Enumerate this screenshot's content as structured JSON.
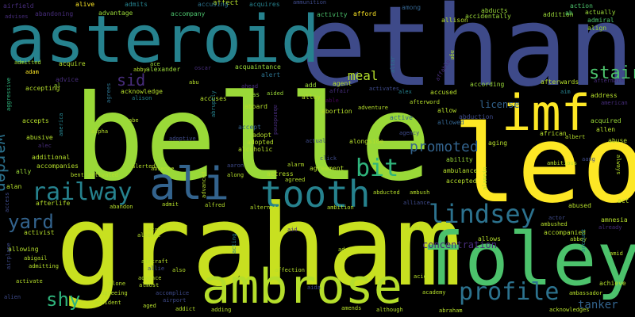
{
  "palette": {
    "yellow": "#c8e020",
    "lime": "#9ad938",
    "green": "#4cc26c",
    "teal_green": "#2fb47c",
    "teal": "#26828e",
    "teal_blue": "#2c728e",
    "blue": "#33638d",
    "indigo": "#3e4a89",
    "violet": "#472d7b",
    "purple": "#440154",
    "light_yellow": "#fde725",
    "pale": "#b5de2b"
  },
  "words": [
    {
      "text": "ethan",
      "color": "indigo",
      "weight": 140
    },
    {
      "text": "asteroid",
      "color": "teal",
      "weight": 82
    },
    {
      "text": "belle",
      "color": "lime",
      "weight": 150
    },
    {
      "text": "leo",
      "color": "light_yellow",
      "weight": 135
    },
    {
      "text": "graham",
      "color": "yellow",
      "weight": 142
    },
    {
      "text": "imf",
      "color": "light_yellow",
      "weight": 62
    },
    {
      "text": "foley",
      "color": "green",
      "weight": 92
    },
    {
      "text": "ali",
      "color": "blue",
      "weight": 56
    },
    {
      "text": "tooth",
      "color": "teal",
      "weight": 46
    },
    {
      "text": "ambrose",
      "color": "pale",
      "weight": 60
    },
    {
      "text": "railway",
      "color": "teal",
      "weight": 30
    },
    {
      "text": "lindsey",
      "color": "teal_blue",
      "weight": 32
    },
    {
      "text": "profile",
      "color": "teal_blue",
      "weight": 30
    },
    {
      "text": "bit",
      "color": "teal_green",
      "weight": 30
    },
    {
      "text": "stair",
      "color": "green",
      "weight": 22
    },
    {
      "text": "sid",
      "color": "violet",
      "weight": 20
    },
    {
      "text": "yard",
      "color": "blue",
      "weight": 24
    },
    {
      "text": "shy",
      "color": "teal_green",
      "weight": 24
    },
    {
      "text": "warden",
      "color": "teal_blue",
      "weight": 20
    },
    {
      "text": "promoted",
      "color": "blue",
      "weight": 18
    },
    {
      "text": "meal",
      "color": "pale",
      "weight": 16
    },
    {
      "text": "tanker",
      "color": "blue",
      "weight": 14
    },
    {
      "text": "license",
      "color": "blue",
      "weight": 12
    },
    {
      "text": "concentration",
      "color": "violet",
      "weight": 12
    },
    {
      "text": "airfield",
      "color": "violet",
      "weight": 8
    },
    {
      "text": "alive",
      "color": "light_yellow",
      "weight": 8
    },
    {
      "text": "admits",
      "color": "teal",
      "weight": 8
    },
    {
      "text": "affect",
      "color": "pale",
      "weight": 9
    },
    {
      "text": "acquires",
      "color": "teal",
      "weight": 8
    },
    {
      "text": "ammunition",
      "color": "indigo",
      "weight": 7
    },
    {
      "text": "abducts",
      "color": "lime",
      "weight": 8
    },
    {
      "text": "action",
      "color": "green",
      "weight": 8
    },
    {
      "text": "advises",
      "color": "violet",
      "weight": 7
    },
    {
      "text": "abandoning",
      "color": "violet",
      "weight": 8
    },
    {
      "text": "advantage",
      "color": "lime",
      "weight": 8
    },
    {
      "text": "accompany",
      "color": "green",
      "weight": 8
    },
    {
      "text": "accusing",
      "color": "teal_blue",
      "weight": 8
    },
    {
      "text": "activity",
      "color": "green",
      "weight": 8
    },
    {
      "text": "afford",
      "color": "light_yellow",
      "weight": 8
    },
    {
      "text": "among",
      "color": "blue",
      "weight": 8
    },
    {
      "text": "allison",
      "color": "pale",
      "weight": 8
    },
    {
      "text": "addition",
      "color": "lime",
      "weight": 8
    },
    {
      "text": "accidentally",
      "color": "lime",
      "weight": 8
    },
    {
      "text": "actually",
      "color": "lime",
      "weight": 8
    },
    {
      "text": "ah",
      "color": "green",
      "weight": 8
    },
    {
      "text": "admiral",
      "color": "green",
      "weight": 8
    },
    {
      "text": "align",
      "color": "lime",
      "weight": 8
    },
    {
      "text": "admitted",
      "color": "lime",
      "weight": 7
    },
    {
      "text": "acquire",
      "color": "pale",
      "weight": 8
    },
    {
      "text": "adam",
      "color": "light_yellow",
      "weight": 7
    },
    {
      "text": "advice",
      "color": "violet",
      "weight": 8
    },
    {
      "text": "accepting",
      "color": "pale",
      "weight": 8
    },
    {
      "text": "abby",
      "color": "pale",
      "weight": 7
    },
    {
      "text": "ace",
      "color": "lime",
      "weight": 7
    },
    {
      "text": "alexander",
      "color": "lime",
      "weight": 8
    },
    {
      "text": "oscar",
      "color": "violet",
      "weight": 7
    },
    {
      "text": "acquaintance",
      "color": "lime",
      "weight": 8
    },
    {
      "text": "alert",
      "color": "teal_blue",
      "weight": 8
    },
    {
      "text": "altar",
      "color": "teal_blue",
      "weight": 7
    },
    {
      "text": "affair",
      "color": "violet",
      "weight": 7
    },
    {
      "text": "affable",
      "color": "violet",
      "weight": 7
    },
    {
      "text": "age",
      "color": "pale",
      "weight": 7
    },
    {
      "text": "abu",
      "color": "pale",
      "weight": 7
    },
    {
      "text": "agent",
      "color": "pale",
      "weight": 8
    },
    {
      "text": "add",
      "color": "lime",
      "weight": 8
    },
    {
      "text": "ahead",
      "color": "violet",
      "weight": 7
    },
    {
      "text": "alias",
      "color": "lime",
      "weight": 8
    },
    {
      "text": "aided",
      "color": "lime",
      "weight": 7
    },
    {
      "text": "alley",
      "color": "pale",
      "weight": 8
    },
    {
      "text": "activates",
      "color": "indigo",
      "weight": 7
    },
    {
      "text": "alex",
      "color": "teal",
      "weight": 7
    },
    {
      "text": "according",
      "color": "lime",
      "weight": 8
    },
    {
      "text": "afterwards",
      "color": "pale",
      "weight": 8
    },
    {
      "text": "aftermath",
      "color": "violet",
      "weight": 7
    },
    {
      "text": "agrees",
      "color": "teal_blue",
      "weight": 7
    },
    {
      "text": "acknowledge",
      "color": "pale",
      "weight": 8
    },
    {
      "text": "alison",
      "color": "teal",
      "weight": 7
    },
    {
      "text": "accuses",
      "color": "pale",
      "weight": 8
    },
    {
      "text": "abruptly",
      "color": "teal",
      "weight": 7
    },
    {
      "text": "aboard",
      "color": "pale",
      "weight": 8
    },
    {
      "text": "abandoned",
      "color": "violet",
      "weight": 7
    },
    {
      "text": "able",
      "color": "purple",
      "weight": 7
    },
    {
      "text": "abortion",
      "color": "pale",
      "weight": 8
    },
    {
      "text": "accused",
      "color": "pale",
      "weight": 8
    },
    {
      "text": "afterword",
      "color": "pale",
      "weight": 7
    },
    {
      "text": "aim",
      "color": "teal",
      "weight": 7
    },
    {
      "text": "address",
      "color": "pale",
      "weight": 8
    },
    {
      "text": "american",
      "color": "violet",
      "weight": 7
    },
    {
      "text": "aggressive",
      "color": "teal_green",
      "weight": 7
    },
    {
      "text": "al",
      "color": "lime",
      "weight": 7
    },
    {
      "text": "accepts",
      "color": "pale",
      "weight": 8
    },
    {
      "text": "america",
      "color": "teal",
      "weight": 7
    },
    {
      "text": "abe",
      "color": "pale",
      "weight": 7
    },
    {
      "text": "accept",
      "color": "blue",
      "weight": 8
    },
    {
      "text": "active",
      "color": "blue",
      "weight": 8
    },
    {
      "text": "allow",
      "color": "pale",
      "weight": 8
    },
    {
      "text": "abduction",
      "color": "indigo",
      "weight": 8
    },
    {
      "text": "allowed",
      "color": "blue",
      "weight": 8
    },
    {
      "text": "acquired",
      "color": "lime",
      "weight": 8
    },
    {
      "text": "allen",
      "color": "pale",
      "weight": 8
    },
    {
      "text": "abuse",
      "color": "pale",
      "weight": 8
    },
    {
      "text": "abusive",
      "color": "pale",
      "weight": 8
    },
    {
      "text": "alec",
      "color": "violet",
      "weight": 7
    },
    {
      "text": "alpha",
      "color": "pale",
      "weight": 7
    },
    {
      "text": "adoptive",
      "color": "indigo",
      "weight": 7
    },
    {
      "text": "adopt",
      "color": "pale",
      "weight": 8
    },
    {
      "text": "adopted",
      "color": "pale",
      "weight": 8
    },
    {
      "text": "alcoholic",
      "color": "pale",
      "weight": 8
    },
    {
      "text": "actual",
      "color": "indigo",
      "weight": 7
    },
    {
      "text": "agency",
      "color": "indigo",
      "weight": 7
    },
    {
      "text": "african",
      "color": "pale",
      "weight": 8
    },
    {
      "text": "albert",
      "color": "pale",
      "weight": 7
    },
    {
      "text": "aging",
      "color": "pale",
      "weight": 8
    },
    {
      "text": "additional",
      "color": "pale",
      "weight": 8
    },
    {
      "text": "accompanies",
      "color": "pale",
      "weight": 8
    },
    {
      "text": "ally",
      "color": "lime",
      "weight": 8
    },
    {
      "text": "alongside",
      "color": "pale",
      "weight": 8
    },
    {
      "text": "ability",
      "color": "lime",
      "weight": 8
    },
    {
      "text": "ambitious",
      "color": "pale",
      "weight": 7
    },
    {
      "text": "aang",
      "color": "indigo",
      "weight": 7
    },
    {
      "text": "always",
      "color": "pale",
      "weight": 7
    },
    {
      "text": "alan",
      "color": "pale",
      "weight": 8
    },
    {
      "text": "bent",
      "color": "pale",
      "weight": 7
    },
    {
      "text": "activated",
      "color": "pale",
      "weight": 7
    },
    {
      "text": "alerted",
      "color": "pale",
      "weight": 7
    },
    {
      "text": "absence",
      "color": "pale",
      "weight": 7
    },
    {
      "text": "aaron",
      "color": "indigo",
      "weight": 7
    },
    {
      "text": "alarm",
      "color": "pale",
      "weight": 7
    },
    {
      "text": "actress",
      "color": "pale",
      "weight": 8
    },
    {
      "text": "agreement",
      "color": "pale",
      "weight": 8
    },
    {
      "text": "accepted",
      "color": "pale",
      "weight": 8
    },
    {
      "text": "ambulance",
      "color": "pale",
      "weight": 8
    },
    {
      "text": "alamein",
      "color": "pale",
      "weight": 7
    },
    {
      "text": "access",
      "color": "indigo",
      "weight": 7
    },
    {
      "text": "afterlife",
      "color": "pale",
      "weight": 8
    },
    {
      "text": "abandon",
      "color": "pale",
      "weight": 7
    },
    {
      "text": "admit",
      "color": "pale",
      "weight": 7
    },
    {
      "text": "alfred",
      "color": "pale",
      "weight": 7
    },
    {
      "text": "alternate",
      "color": "pale",
      "weight": 7
    },
    {
      "text": "ambition",
      "color": "pale",
      "weight": 7
    },
    {
      "text": "alliance",
      "color": "indigo",
      "weight": 7
    },
    {
      "text": "act",
      "color": "pale",
      "weight": 8
    },
    {
      "text": "abused",
      "color": "pale",
      "weight": 8
    },
    {
      "text": "activist",
      "color": "pale",
      "weight": 8
    },
    {
      "text": "alcohol",
      "color": "pale",
      "weight": 7
    },
    {
      "text": "across",
      "color": "pale",
      "weight": 7
    },
    {
      "text": "acting",
      "color": "teal",
      "weight": 7
    },
    {
      "text": "aid",
      "color": "violet",
      "weight": 7
    },
    {
      "text": "abducted",
      "color": "pale",
      "weight": 7
    },
    {
      "text": "ambush",
      "color": "pale",
      "weight": 7
    },
    {
      "text": "alter",
      "color": "pale",
      "weight": 7
    },
    {
      "text": "actor",
      "color": "indigo",
      "weight": 7
    },
    {
      "text": "ambushed",
      "color": "pale",
      "weight": 7
    },
    {
      "text": "accompanied",
      "color": "pale",
      "weight": 8
    },
    {
      "text": "amnesia",
      "color": "pale",
      "weight": 8
    },
    {
      "text": "already",
      "color": "violet",
      "weight": 7
    },
    {
      "text": "allows",
      "color": "pale",
      "weight": 8
    },
    {
      "text": "abbey",
      "color": "pale",
      "weight": 7
    },
    {
      "text": "allowing",
      "color": "pale",
      "weight": 8
    },
    {
      "text": "abigail",
      "color": "pale",
      "weight": 7
    },
    {
      "text": "admitting",
      "color": "pale",
      "weight": 7
    },
    {
      "text": "activate",
      "color": "pale",
      "weight": 7
    },
    {
      "text": "airplane",
      "color": "indigo",
      "weight": 7
    },
    {
      "text": "alien",
      "color": "indigo",
      "weight": 7
    },
    {
      "text": "aircraft",
      "color": "pale",
      "weight": 7
    },
    {
      "text": "allie",
      "color": "indigo",
      "weight": 7
    },
    {
      "text": "also",
      "color": "pale",
      "weight": 7
    },
    {
      "text": "affection",
      "color": "pale",
      "weight": 7
    },
    {
      "text": "acid",
      "color": "pale",
      "weight": 7
    },
    {
      "text": "amid",
      "color": "pale",
      "weight": 7
    },
    {
      "text": "account",
      "color": "teal",
      "weight": 7
    },
    {
      "text": "advance",
      "color": "pale",
      "weight": 7
    },
    {
      "text": "almost",
      "color": "pale",
      "weight": 7
    },
    {
      "text": "alone",
      "color": "pale",
      "weight": 7
    },
    {
      "text": "accomplice",
      "color": "indigo",
      "weight": 7
    },
    {
      "text": "aida",
      "color": "indigo",
      "weight": 7
    },
    {
      "text": "academy",
      "color": "pale",
      "weight": 7
    },
    {
      "text": "achieve",
      "color": "pale",
      "weight": 8
    },
    {
      "text": "ambassador",
      "color": "pale",
      "weight": 7
    },
    {
      "text": "agreeing",
      "color": "pale",
      "weight": 7
    },
    {
      "text": "airport",
      "color": "indigo",
      "weight": 7
    },
    {
      "text": "accident",
      "color": "pale",
      "weight": 7
    },
    {
      "text": "aged",
      "color": "pale",
      "weight": 7
    },
    {
      "text": "addict",
      "color": "pale",
      "weight": 7
    },
    {
      "text": "adding",
      "color": "pale",
      "weight": 7
    },
    {
      "text": "amends",
      "color": "pale",
      "weight": 7
    },
    {
      "text": "although",
      "color": "pale",
      "weight": 7
    },
    {
      "text": "abraham",
      "color": "pale",
      "weight": 7
    },
    {
      "text": "acknowledges",
      "color": "pale",
      "weight": 7
    },
    {
      "text": "adventure",
      "color": "pale",
      "weight": 7
    },
    {
      "text": "agreed",
      "color": "pale",
      "weight": 7
    },
    {
      "text": "ad",
      "color": "pale",
      "weight": 7
    },
    {
      "text": "advanced",
      "color": "pale",
      "weight": 7
    },
    {
      "text": "click",
      "color": "indigo",
      "weight": 7
    },
    {
      "text": "along",
      "color": "pale",
      "weight": 7
    }
  ]
}
